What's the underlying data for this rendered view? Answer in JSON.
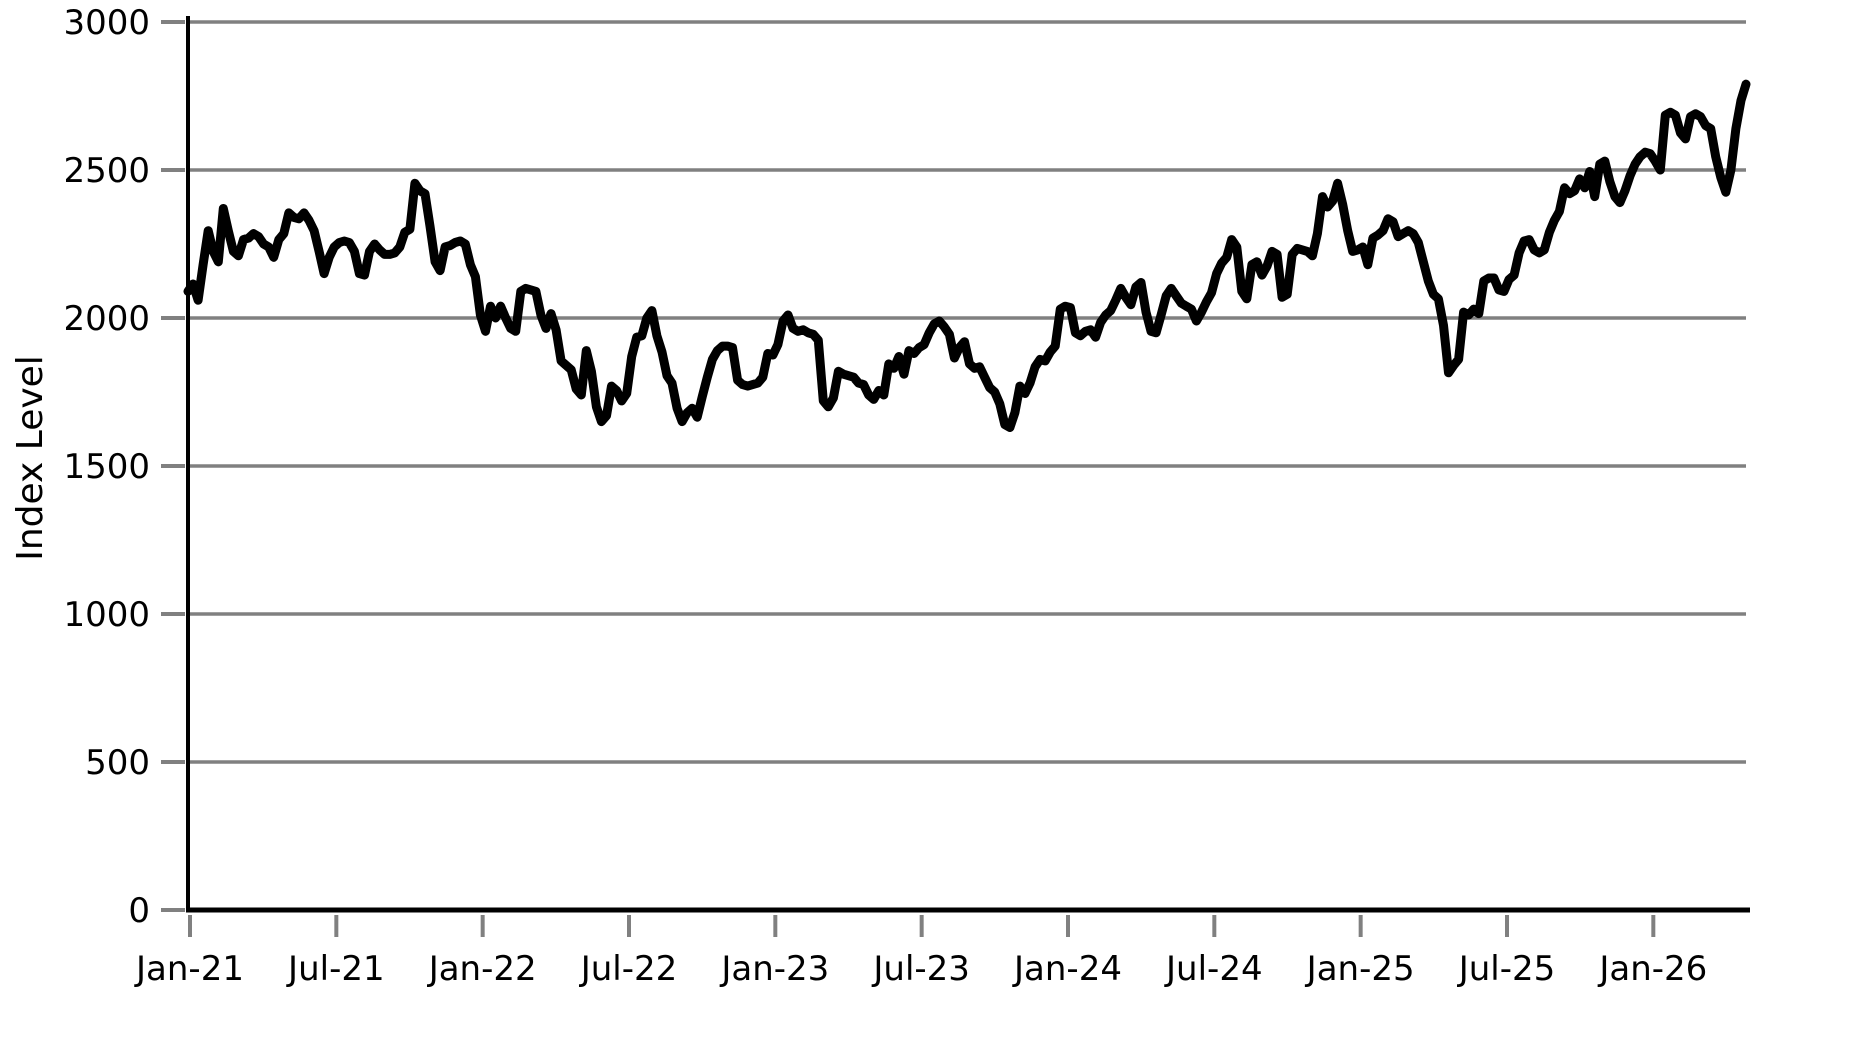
{
  "figure": {
    "background": "#ffffff",
    "title": ""
  },
  "chart_data": {
    "type": "line",
    "title": "",
    "xlabel": "",
    "ylabel": "Index Level",
    "ylim": [
      0,
      3000
    ],
    "yticks": [
      0,
      500,
      1000,
      1500,
      2000,
      2500,
      3000
    ],
    "xticks": [
      {
        "label": "Jan-21",
        "month": 0
      },
      {
        "label": "Jul-21",
        "month": 6
      },
      {
        "label": "Jan-22",
        "month": 12
      },
      {
        "label": "Jul-22",
        "month": 18
      },
      {
        "label": "Jan-23",
        "month": 24
      },
      {
        "label": "Jul-23",
        "month": 30
      },
      {
        "label": "Jan-24",
        "month": 36
      },
      {
        "label": "Jul-24",
        "month": 42
      },
      {
        "label": "Jan-25",
        "month": 48
      },
      {
        "label": "Jul-25",
        "month": 54
      },
      {
        "label": "Jan-26",
        "month": 60
      }
    ],
    "x_span_months": 63.8,
    "grid": true,
    "grid_color": "#808080",
    "axis_color": "#000000",
    "legend": false,
    "series": [
      {
        "name": "Index Level",
        "color": "#000000",
        "start": "Jan-2021",
        "end": "Apr-2026",
        "frequency": "weekly",
        "values": [
          2090,
          2115,
          2060,
          2180,
          2295,
          2225,
          2190,
          2370,
          2295,
          2225,
          2210,
          2265,
          2270,
          2285,
          2275,
          2250,
          2240,
          2205,
          2265,
          2285,
          2355,
          2340,
          2335,
          2355,
          2330,
          2295,
          2225,
          2150,
          2205,
          2240,
          2255,
          2260,
          2255,
          2225,
          2150,
          2145,
          2225,
          2250,
          2230,
          2215,
          2215,
          2220,
          2240,
          2290,
          2300,
          2455,
          2430,
          2420,
          2310,
          2190,
          2160,
          2240,
          2245,
          2255,
          2260,
          2250,
          2180,
          2140,
          2010,
          1955,
          2040,
          2000,
          2040,
          2000,
          1965,
          1955,
          2090,
          2100,
          2095,
          2090,
          2010,
          1965,
          2015,
          1960,
          1855,
          1840,
          1825,
          1760,
          1740,
          1890,
          1820,
          1700,
          1650,
          1670,
          1770,
          1755,
          1720,
          1745,
          1870,
          1935,
          1940,
          2000,
          2025,
          1940,
          1885,
          1805,
          1780,
          1695,
          1650,
          1680,
          1695,
          1665,
          1735,
          1800,
          1860,
          1890,
          1905,
          1905,
          1900,
          1790,
          1775,
          1770,
          1775,
          1780,
          1800,
          1880,
          1875,
          1910,
          1990,
          2010,
          1965,
          1955,
          1960,
          1950,
          1945,
          1925,
          1720,
          1700,
          1730,
          1820,
          1810,
          1805,
          1800,
          1780,
          1775,
          1740,
          1725,
          1755,
          1740,
          1845,
          1830,
          1870,
          1810,
          1890,
          1880,
          1900,
          1910,
          1950,
          1980,
          1990,
          1970,
          1945,
          1865,
          1900,
          1920,
          1845,
          1830,
          1835,
          1800,
          1765,
          1750,
          1710,
          1640,
          1630,
          1680,
          1770,
          1745,
          1780,
          1835,
          1860,
          1855,
          1885,
          1905,
          2030,
          2040,
          2035,
          1950,
          1940,
          1955,
          1960,
          1935,
          1985,
          2010,
          2025,
          2060,
          2100,
          2070,
          2045,
          2105,
          2120,
          2020,
          1955,
          1950,
          2010,
          2075,
          2100,
          2075,
          2050,
          2040,
          2030,
          1990,
          2020,
          2055,
          2085,
          2150,
          2185,
          2205,
          2265,
          2240,
          2090,
          2065,
          2180,
          2190,
          2145,
          2175,
          2225,
          2215,
          2070,
          2080,
          2215,
          2235,
          2230,
          2225,
          2210,
          2285,
          2410,
          2375,
          2395,
          2455,
          2385,
          2295,
          2225,
          2230,
          2240,
          2180,
          2270,
          2280,
          2295,
          2335,
          2325,
          2275,
          2285,
          2295,
          2285,
          2255,
          2190,
          2125,
          2080,
          2065,
          1975,
          1815,
          1840,
          1860,
          2020,
          2010,
          2030,
          2015,
          2125,
          2135,
          2135,
          2095,
          2090,
          2130,
          2145,
          2220,
          2260,
          2265,
          2230,
          2220,
          2230,
          2290,
          2330,
          2360,
          2440,
          2420,
          2430,
          2470,
          2440,
          2495,
          2410,
          2520,
          2530,
          2460,
          2410,
          2390,
          2430,
          2480,
          2520,
          2545,
          2560,
          2555,
          2530,
          2500,
          2685,
          2695,
          2685,
          2625,
          2605,
          2680,
          2690,
          2680,
          2650,
          2640,
          2545,
          2475,
          2425,
          2500,
          2640,
          2735,
          2790
        ]
      }
    ]
  }
}
